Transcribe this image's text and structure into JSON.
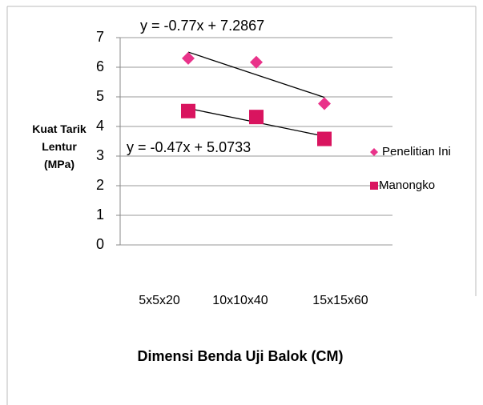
{
  "chart_data": {
    "type": "scatter",
    "y_label": "Kuat Tarik Lentur (MPa)",
    "x_label": "Dimensi Benda Uji Balok (CM)",
    "categories": [
      "5x5x20",
      "10x10x40",
      "15x15x60"
    ],
    "series": [
      {
        "name": "Penelitian Ini",
        "color": "#e9338a",
        "marker": "diamond",
        "values": [
          6.3,
          6.17,
          4.77
        ],
        "trendline": "y = -0.77x + 7.2867"
      },
      {
        "name": "Manongko",
        "color": "#d9145f",
        "marker": "square",
        "values": [
          4.52,
          4.32,
          3.58
        ],
        "trendline": "y = -0.47x + 5.0733"
      }
    ],
    "ylim": [
      0,
      7
    ],
    "yticks": [
      0,
      1,
      2,
      3,
      4,
      5,
      6,
      7
    ],
    "grid": true,
    "legend": "right"
  }
}
